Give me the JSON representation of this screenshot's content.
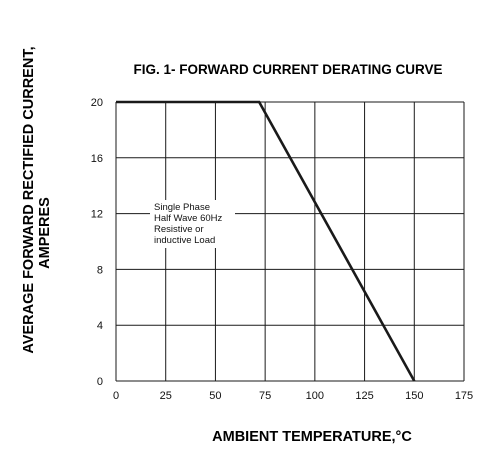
{
  "chart_data": {
    "type": "line",
    "title": "FIG. 1- FORWARD CURRENT DERATING CURVE",
    "xlabel": "AMBIENT TEMPERATURE,°C",
    "ylabel": [
      "AVERAGE FORWARD RECTIFIED CURRENT,",
      "AMPERES"
    ],
    "xlim": [
      0,
      175
    ],
    "ylim": [
      0,
      20
    ],
    "xticks": [
      0,
      25,
      50,
      75,
      100,
      125,
      150,
      175
    ],
    "yticks": [
      0,
      4,
      8,
      12,
      16,
      20
    ],
    "grid": true,
    "series": [
      {
        "x": [
          0,
          72,
          150
        ],
        "y": [
          20,
          20,
          0
        ]
      }
    ],
    "annotation": [
      "Single Phase",
      "Half Wave 60Hz",
      "Resistive or",
      "inductive Load"
    ],
    "colors": {
      "line": "#1a1a1a",
      "grid": "#1a1a1a",
      "background": "#ffffff"
    }
  }
}
